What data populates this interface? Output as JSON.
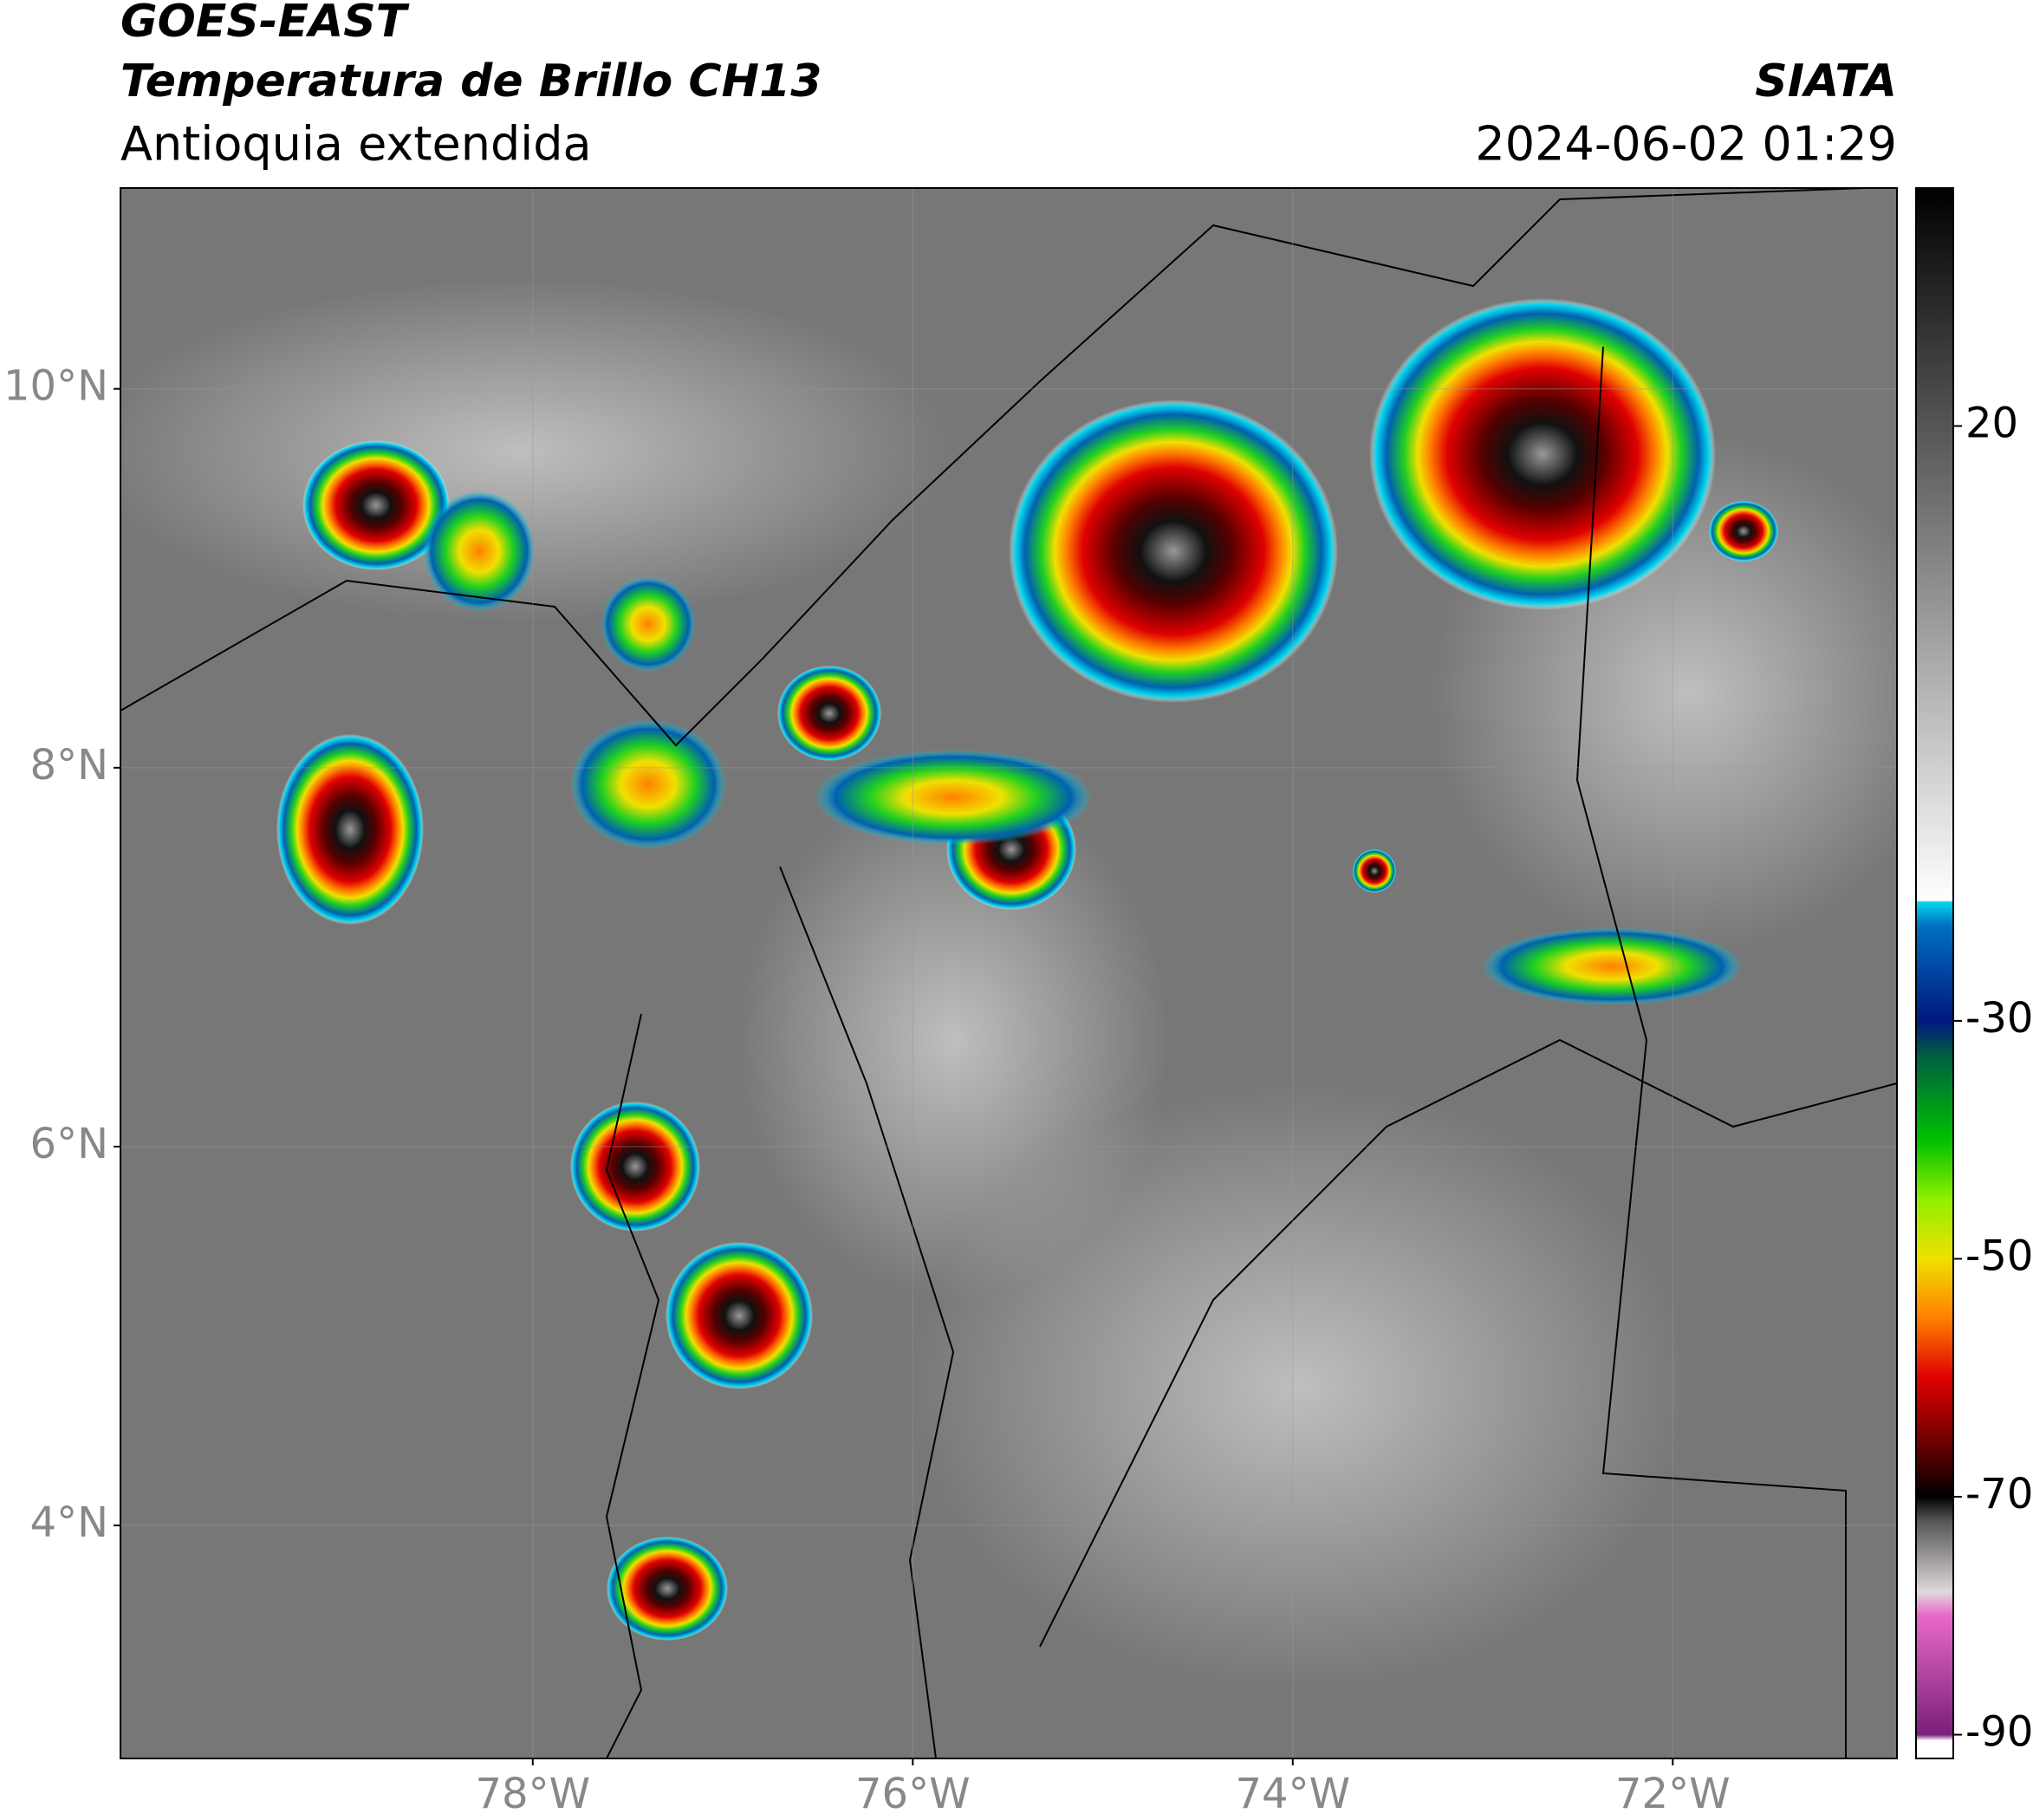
{
  "map": {
    "header": {
      "satellite": "GOES-EAST",
      "product": "Temperatura de Brillo CH13",
      "region": "Antioquia extendida",
      "source": "SIATA",
      "datetime": "2024-06-02 01:29"
    },
    "xlim": [
      -80.17,
      -70.82
    ],
    "ylim": [
      2.77,
      11.06
    ],
    "xticks": [
      {
        "value": -78,
        "label": "78°W"
      },
      {
        "value": -76,
        "label": "76°W"
      },
      {
        "value": -74,
        "label": "74°W"
      },
      {
        "value": -72,
        "label": "72°W"
      }
    ],
    "yticks": [
      {
        "value": 10,
        "label": "10°N"
      },
      {
        "value": 8,
        "label": "8°N"
      },
      {
        "value": 6,
        "label": "6°N"
      },
      {
        "value": 4,
        "label": "4°N"
      }
    ],
    "grid": true,
    "colorbar": {
      "clim": [
        -92,
        40
      ],
      "ticks": [
        20,
        -30,
        -50,
        -70,
        -90
      ],
      "stops": [
        {
          "value": -92,
          "color": "#ffffff"
        },
        {
          "value": -90.5,
          "color": "#ffffff"
        },
        {
          "value": -90,
          "color": "#7a1f7a"
        },
        {
          "value": -80,
          "color": "#e868c8"
        },
        {
          "value": -78,
          "color": "#e0d8dc"
        },
        {
          "value": -72,
          "color": "#555555"
        },
        {
          "value": -70,
          "color": "#000000"
        },
        {
          "value": -66,
          "color": "#600000"
        },
        {
          "value": -60,
          "color": "#e00000"
        },
        {
          "value": -55,
          "color": "#ff8000"
        },
        {
          "value": -50,
          "color": "#f0e000"
        },
        {
          "value": -45,
          "color": "#90f000"
        },
        {
          "value": -40,
          "color": "#00c000"
        },
        {
          "value": -33,
          "color": "#006040"
        },
        {
          "value": -30,
          "color": "#001880"
        },
        {
          "value": -22,
          "color": "#0070c0"
        },
        {
          "value": -20,
          "color": "#00d8f0"
        },
        {
          "value": -19.9,
          "color": "#ffffff"
        },
        {
          "value": 40,
          "color": "#000000"
        }
      ]
    }
  }
}
